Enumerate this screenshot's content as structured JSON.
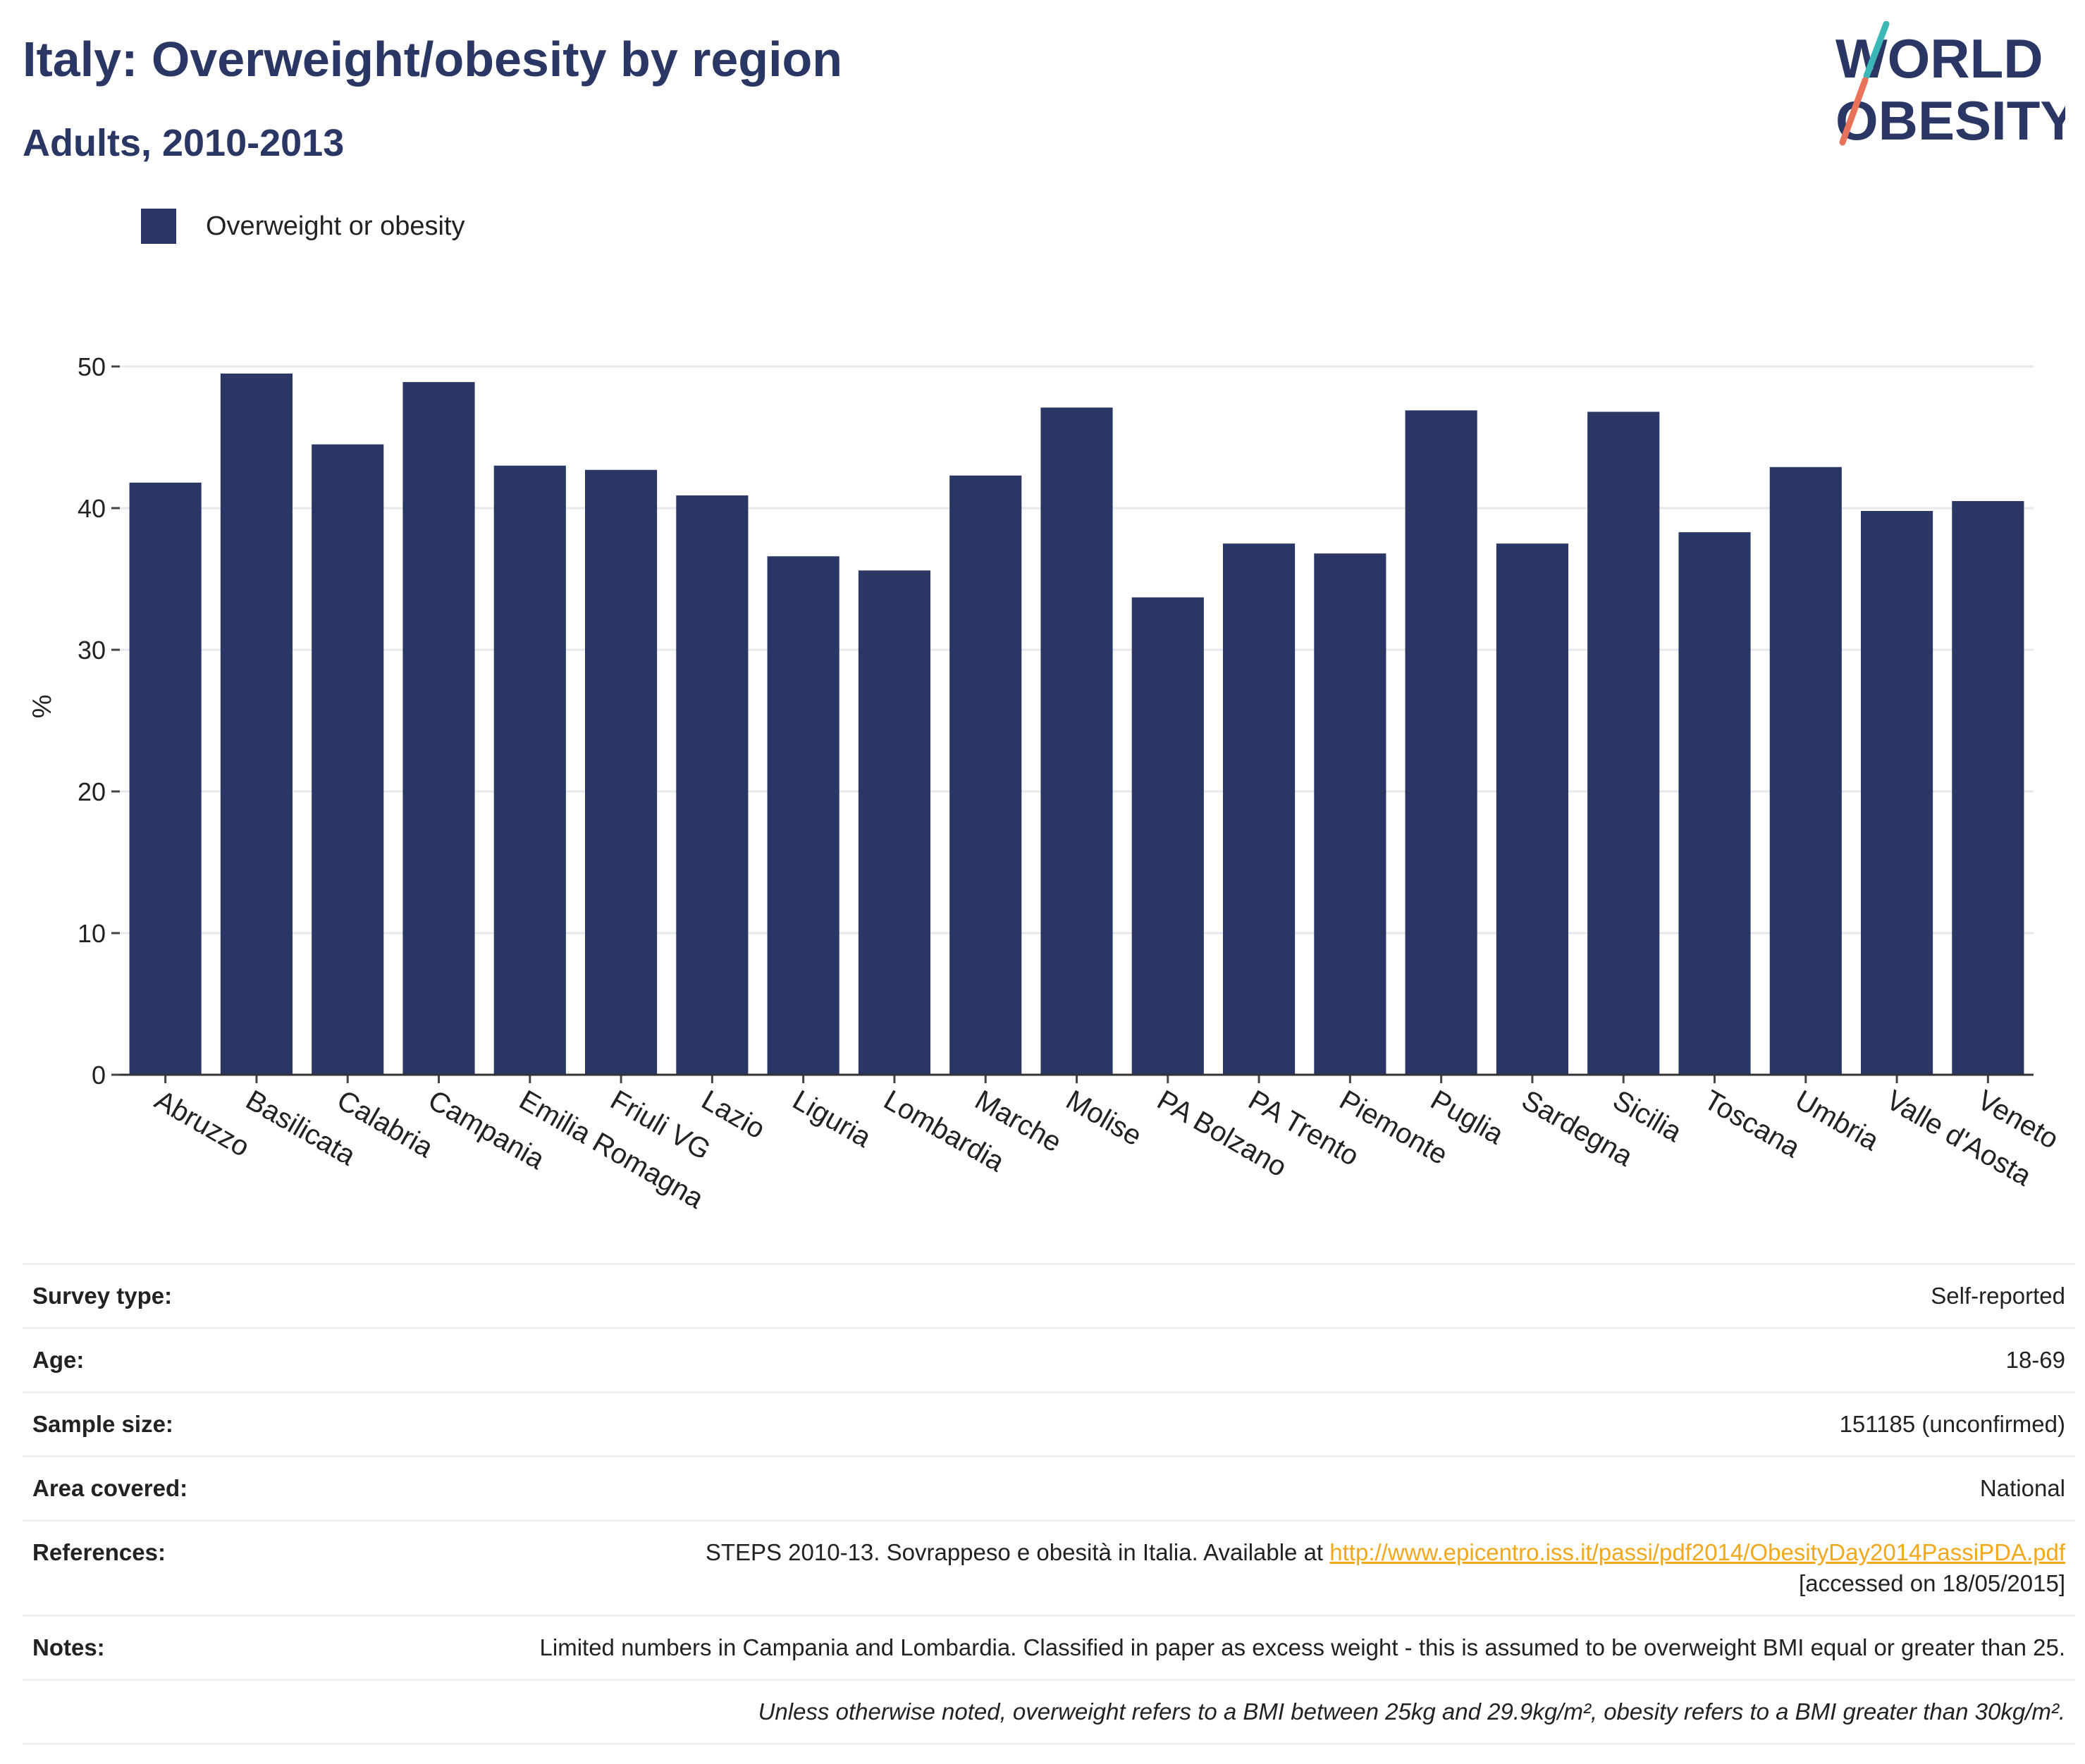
{
  "header": {
    "title": "Italy: Overweight/obesity by region",
    "subtitle": "Adults, 2010-2013"
  },
  "logo": {
    "line1": "WORLD",
    "line2": "OBESITY"
  },
  "colors": {
    "bar": "#2a3663",
    "title": "#2a3663",
    "link": "#f2a81d",
    "logo_teal": "#3bb7b7",
    "logo_coral": "#e8735a"
  },
  "chart_data": {
    "type": "bar",
    "title": "",
    "xlabel": "",
    "ylabel": "%",
    "ylim": [
      0,
      52
    ],
    "yticks": [
      0,
      10,
      20,
      30,
      40,
      50
    ],
    "grid": true,
    "legend_position": "top-left",
    "categories": [
      "Abruzzo",
      "Basilicata",
      "Calabria",
      "Campania",
      "Emilia Romagna",
      "Friuli VG",
      "Lazio",
      "Liguria",
      "Lombardia",
      "Marche",
      "Molise",
      "PA Bolzano",
      "PA Trento",
      "Piemonte",
      "Puglia",
      "Sardegna",
      "Sicilia",
      "Toscana",
      "Umbria",
      "Valle d'Aosta",
      "Veneto"
    ],
    "series": [
      {
        "name": "Overweight or obesity",
        "values": [
          41.8,
          49.5,
          44.5,
          48.9,
          43.0,
          42.7,
          40.9,
          36.6,
          35.6,
          42.3,
          47.1,
          33.7,
          37.5,
          36.8,
          46.9,
          37.5,
          46.8,
          38.3,
          42.9,
          39.8,
          40.5
        ]
      }
    ]
  },
  "info": {
    "survey_type": {
      "label": "Survey type:",
      "value": "Self-reported"
    },
    "age": {
      "label": "Age:",
      "value": "18-69"
    },
    "sample_size": {
      "label": "Sample size:",
      "value": "151185 (unconfirmed)"
    },
    "area": {
      "label": "Area covered:",
      "value": "National"
    },
    "references": {
      "label": "References:",
      "text": "STEPS 2010-13. Sovrappeso e obesità in Italia. Available at ",
      "link": "http://www.epicentro.iss.it/passi/pdf2014/ObesityDay2014PassiPDA.pdf",
      "accessed": "[accessed on 18/05/2015]"
    },
    "notes": {
      "label": "Notes:",
      "value": "Limited numbers in Campania and Lombardia. Classified in paper as excess weight - this is assumed to be overweight BMI equal or greater than 25."
    },
    "footnote": "Unless otherwise noted, overweight refers to a BMI between 25kg and 29.9kg/m², obesity refers to a BMI greater than 30kg/m²."
  }
}
